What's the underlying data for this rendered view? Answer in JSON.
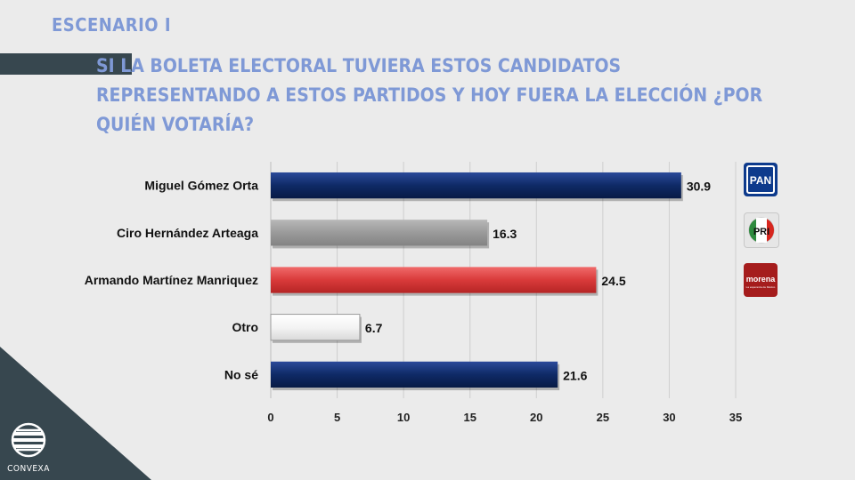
{
  "header": {
    "scenario": "ESCENARIO I",
    "question": "SI LA BOLETA ELECTORAL TUVIERA ESTOS CANDIDATOS REPRESENTANDO A ESTOS PARTIDOS Y HOY FUERA  LA ELECCIÓN ¿POR QUIÉN VOTARÍA?"
  },
  "brand": {
    "name": "CONVEXA"
  },
  "parties": [
    {
      "name": "PAN",
      "label": "PAN",
      "color": "#0d3a8c"
    },
    {
      "name": "PRI",
      "label": "PRI",
      "colors": [
        "#2e8b3e",
        "#ffffff",
        "#d7261e"
      ]
    },
    {
      "name": "morena",
      "label": "morena",
      "sublabel": "La esperanza de México",
      "color": "#a51c1c"
    }
  ],
  "chart_data": {
    "type": "bar",
    "orientation": "horizontal",
    "categories": [
      "Miguel Gómez Orta",
      "Ciro Hernández Arteaga",
      "Armando Martínez Manriquez",
      "Otro",
      "No sé"
    ],
    "values": [
      30.9,
      16.3,
      24.5,
      6.7,
      21.6
    ],
    "value_labels": [
      "30.9",
      "16.3",
      "24.5",
      "6.7",
      "21.6"
    ],
    "colors": [
      "#0f2a66",
      "#9a9a9a",
      "#d93a3a",
      "#f4f4f4",
      "#0f2a66"
    ],
    "xlim": [
      0,
      35
    ],
    "xticks": [
      0,
      5,
      10,
      15,
      20,
      25,
      30,
      35
    ],
    "grid": true,
    "title": "",
    "xlabel": "",
    "ylabel": ""
  }
}
